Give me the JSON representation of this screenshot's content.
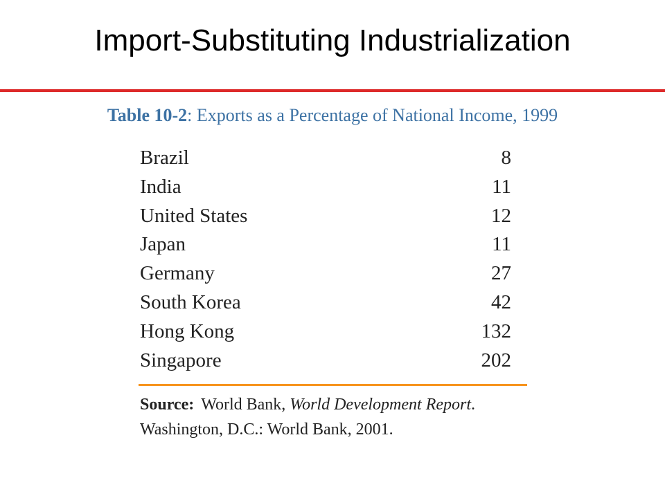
{
  "slide": {
    "title": "Import-Substituting Industrialization"
  },
  "caption": {
    "label": "Table 10-2",
    "separator": ":",
    "text": " Exports as a Percentage of National Income, 1999"
  },
  "table": {
    "rows": [
      {
        "country": "Brazil",
        "value": "8"
      },
      {
        "country": "India",
        "value": "11"
      },
      {
        "country": "United States",
        "value": "12"
      },
      {
        "country": "Japan",
        "value": "11"
      },
      {
        "country": "Germany",
        "value": "27"
      },
      {
        "country": "South Korea",
        "value": "42"
      },
      {
        "country": "Hong Kong",
        "value": "132"
      },
      {
        "country": "Singapore",
        "value": "202"
      }
    ]
  },
  "source": {
    "label": "Source:",
    "publisher": "World Bank, ",
    "title": "World Development Report",
    "title_end": ".",
    "line2": "Washington, D.C.: World Bank, 2001."
  },
  "colors": {
    "title_rule": "#dd2a2a",
    "caption_text": "#3d72a4",
    "source_rule": "#f7941d"
  }
}
